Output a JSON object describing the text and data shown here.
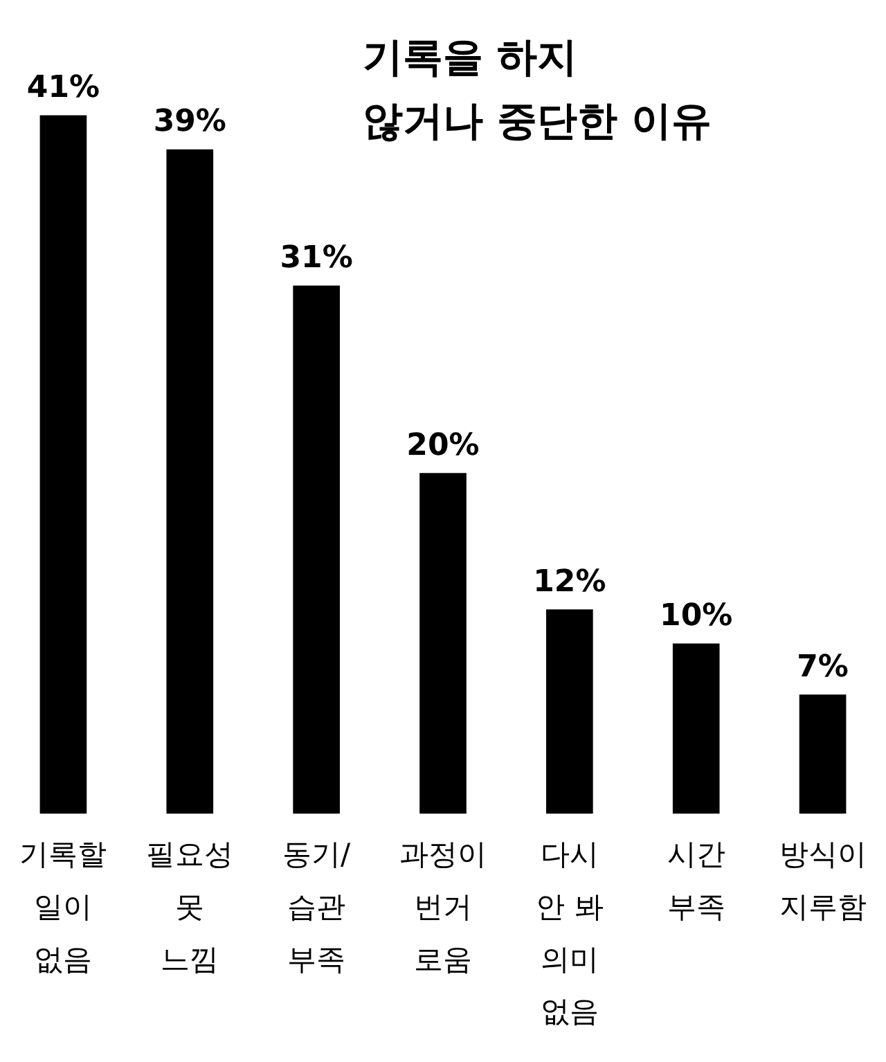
{
  "chart_data": {
    "type": "bar",
    "title": "기록을 하지\n않거나 중단한 이유",
    "categories": [
      "기록할\n일이\n없음",
      "필요성\n못\n느낌",
      "동기/\n습관\n부족",
      "과정이\n번거\n로움",
      "다시\n안 봐\n의미\n없음",
      "시간\n부족",
      "방식이\n지루함"
    ],
    "values": [
      41,
      39,
      31,
      20,
      12,
      10,
      7
    ],
    "color": "#000000",
    "value_labels": [
      "41%",
      "39%",
      "31%",
      "20%",
      "12%",
      "10%",
      "7%"
    ],
    "grid": false,
    "legend": false
  }
}
